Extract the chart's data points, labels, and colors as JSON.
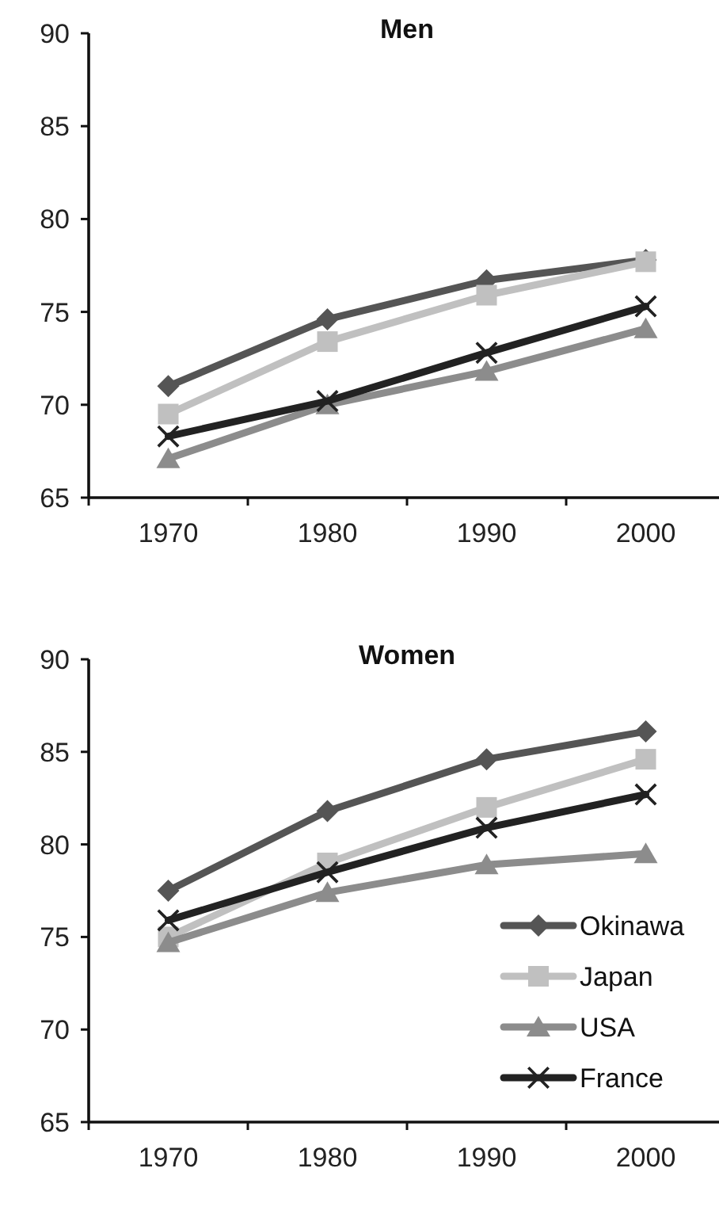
{
  "chart_data": [
    {
      "type": "line",
      "title": "Men",
      "categories": [
        "1970",
        "1980",
        "1990",
        "2000"
      ],
      "ylim": [
        65,
        90
      ],
      "yticks": [
        65,
        70,
        75,
        80,
        85,
        90
      ],
      "legend": false,
      "grid": false,
      "series": [
        {
          "color": "#555555",
          "marker": "diamond",
          "values": [
            71.0,
            74.6,
            76.7,
            77.8
          ]
        },
        {
          "color": "#c0c0c0",
          "marker": "square",
          "values": [
            69.5,
            73.4,
            75.9,
            77.7
          ]
        },
        {
          "color": "#8c8c8c",
          "marker": "triangle",
          "values": [
            67.1,
            70.0,
            71.8,
            74.1
          ]
        },
        {
          "color": "#222222",
          "marker": "cross",
          "values": [
            68.3,
            70.2,
            72.8,
            75.3
          ]
        }
      ]
    },
    {
      "type": "line",
      "title": "Women",
      "categories": [
        "1970",
        "1980",
        "1990",
        "2000"
      ],
      "ylim": [
        65,
        90
      ],
      "yticks": [
        65,
        70,
        75,
        80,
        85,
        90
      ],
      "legend": "bottom right",
      "grid": false,
      "series": [
        {
          "name": "Okinawa",
          "color": "#555555",
          "marker": "diamond",
          "values": [
            77.5,
            81.8,
            84.6,
            86.1
          ]
        },
        {
          "name": "Japan",
          "color": "#c0c0c0",
          "marker": "square",
          "values": [
            75.0,
            79.0,
            82.0,
            84.6
          ]
        },
        {
          "name": "USA",
          "color": "#8c8c8c",
          "marker": "triangle",
          "values": [
            74.7,
            77.4,
            78.9,
            79.5
          ]
        },
        {
          "name": "France",
          "color": "#222222",
          "marker": "cross",
          "values": [
            75.9,
            78.5,
            80.9,
            82.7
          ]
        }
      ]
    }
  ]
}
